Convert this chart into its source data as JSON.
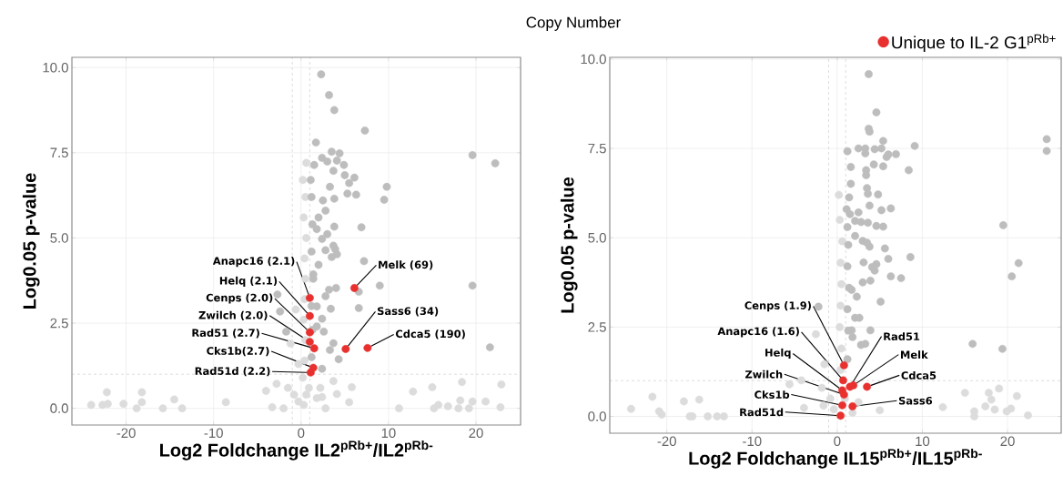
{
  "chart_data": [
    {
      "type": "scatter",
      "xlabel": "Log2 Foldchange IL2$^{pRb+}$/IL2$^{pRb-}$",
      "ylabel": "Log0.05 p-value",
      "xlim": [
        -26.2,
        25.1
      ],
      "ylim": [
        -0.49,
        10.3
      ],
      "xticks": [
        -20,
        -10,
        0,
        10,
        20
      ],
      "yticks": [
        {
          "value": 0,
          "label": "0.0"
        },
        {
          "value": 2.5,
          "label": "2.5"
        },
        {
          "value": 5,
          "label": "5.0"
        },
        {
          "value": 7.5,
          "label": "7.5"
        },
        {
          "value": 10,
          "label": "10.0"
        }
      ],
      "grid": true,
      "legend": false,
      "ref_lines": [
        {
          "axis": "x",
          "value": -1,
          "color": "#aaaaaa",
          "line_style": "dashed"
        },
        {
          "axis": "x",
          "value": 1,
          "color": "#aaaaaa",
          "line_style": "dashed"
        },
        {
          "axis": "y",
          "value": 1,
          "color": "#aaaaaa",
          "line_style": "dashed"
        }
      ],
      "series": [
        {
          "color": "#dcdcdc",
          "x": [
            -24,
            -22.7,
            -22.2,
            -22.1,
            -20.3,
            -18.8,
            -18.2,
            -18.2,
            -15.8,
            -14.5,
            -13.6,
            -8.6,
            -4.0,
            -3.3,
            -2.8,
            3.7,
            4.1,
            5.8,
            5.5,
            11.2,
            12.8,
            15.0,
            15.2,
            15.7,
            16.8,
            18.4,
            18.2,
            18.0,
            19.2,
            19.6,
            21.1,
            22.9,
            22.8,
            2.4,
            2.8,
            -2.0,
            0.3,
            0.6,
            -0.3,
            0.9,
            0.2,
            -0.8,
            1.8,
            2.2,
            -1.5,
            0.4,
            0.5,
            0.3,
            0.4,
            0.5,
            0.4,
            0.6,
            0.3,
            0.5,
            0.2,
            0.6,
            -0.3,
            -0.6,
            -1.2
          ],
          "values": [
            0.1,
            0.1,
            0.47,
            0.13,
            0.13,
            0,
            0.47,
            0.18,
            0,
            0.26,
            0,
            0.18,
            0.51,
            0.03,
            0.72,
            0.8,
            0.42,
            0.62,
            0.18,
            0,
            0.49,
            0.62,
            0,
            0.1,
            0.06,
            0.77,
            0.23,
            0,
            0,
            0.2,
            0.2,
            0.7,
            0.03,
            0.33,
            0,
            0,
            0.1,
            0.4,
            0.2,
            0.6,
            0.9,
            0.4,
            0.3,
            0.6,
            0.6,
            1.4,
            2.0,
            2.6,
            3.2,
            3.8,
            4.4,
            5.0,
            5.6,
            6.2,
            6.7,
            7.2,
            1.3,
            2.9,
            1.9
          ]
        },
        {
          "color": "#bdbdbd",
          "x": [
            2.3,
            3.2,
            3.8,
            7.3,
            1.7,
            19.6,
            22.2,
            3.5,
            4.4,
            2.4,
            3.0,
            4.1,
            4.9,
            1.5,
            3.7,
            5.0,
            6.1,
            5.5,
            3.3,
            9.8,
            5.3,
            6.3,
            9.5,
            3.8,
            2.5,
            2.8,
            2.0,
            6.9,
            3.8,
            1.8,
            3.0,
            2.4,
            3.7,
            2.8,
            3.9,
            4.1,
            7.2,
            3.5,
            2.0,
            1.4,
            9.0,
            19.6,
            4.0,
            3.2,
            6.6,
            2.8,
            -2.7,
            1.8,
            6.6,
            3.4,
            2.4,
            1.8,
            2.6,
            3.7,
            3.3,
            4.3,
            21.6,
            -2.4,
            -1.7,
            2.4,
            1.2,
            1.3,
            1.2,
            1.4,
            1.2,
            1.3,
            1.2,
            1.1
          ],
          "values": [
            9.8,
            9.19,
            8.75,
            8.15,
            7.8,
            7.43,
            7.19,
            7.53,
            7.48,
            7.35,
            7.24,
            7.27,
            7.14,
            7.14,
            6.97,
            6.84,
            6.77,
            6.61,
            6.5,
            6.5,
            6.3,
            6.27,
            6.12,
            6.15,
            6.1,
            5.8,
            5.6,
            5.31,
            5.33,
            5.26,
            5.11,
            4.97,
            4.77,
            4.64,
            4.67,
            4.52,
            4.32,
            4.44,
            4.21,
            3.93,
            3.6,
            3.6,
            3.53,
            3.48,
            3.42,
            3.29,
            3.34,
            2.99,
            2.94,
            2.92,
            2.63,
            2.4,
            2.25,
            1.91,
            1.71,
            1.44,
            1.79,
            2.84,
            2.25,
            1.16,
            1.5,
            2.3,
            3.0,
            3.8,
            4.6,
            5.4,
            6.2,
            6.7
          ]
        },
        {
          "color": "#e8312f",
          "x": [
            1.0,
            1.0,
            1.0,
            1.0,
            1.5,
            1.4,
            1.1,
            6.1,
            5.1,
            7.6
          ],
          "values": [
            3.24,
            2.71,
            2.23,
            1.95,
            1.76,
            1.19,
            1.05,
            3.53,
            1.74,
            1.77
          ]
        }
      ],
      "annotations": [
        {
          "text": "Anapc16 (2.1)",
          "x": 1.0,
          "y": 3.24
        },
        {
          "text": "Helq (2.1)",
          "x": 1.0,
          "y": 2.71
        },
        {
          "text": "Cenps (2.0)",
          "x": 1.0,
          "y": 2.23
        },
        {
          "text": "Zwilch (2.0)",
          "x": 1.0,
          "y": 1.95
        },
        {
          "text": "Rad51 (2.7)",
          "x": 1.5,
          "y": 1.76
        },
        {
          "text": "Cks1b(2.7)",
          "x": 1.4,
          "y": 1.19
        },
        {
          "text": "Rad51d (2.2)",
          "x": 1.1,
          "y": 1.05
        },
        {
          "text": "Melk (69)",
          "x": 6.1,
          "y": 3.53
        },
        {
          "text": "Sass6 (34)",
          "x": 5.1,
          "y": 1.74
        },
        {
          "text": "Cdca5 (190)",
          "x": 7.6,
          "y": 1.77
        }
      ]
    },
    {
      "type": "scatter",
      "title": "Copy Number",
      "xlabel": "Log2 Foldchange IL15$^{pRb+}$/IL15$^{pRb-}$",
      "ylabel": "Log0.05 p-value",
      "xlim": [
        -26.7,
        26.3
      ],
      "ylim": [
        -0.47,
        10.05
      ],
      "xticks": [
        -20,
        -10,
        0,
        10,
        20
      ],
      "yticks": [
        {
          "value": 0,
          "label": "0.0"
        },
        {
          "value": 2.5,
          "label": "2.5"
        },
        {
          "value": 5,
          "label": "5.0"
        },
        {
          "value": 7.5,
          "label": "7.5"
        },
        {
          "value": 10,
          "label": "10.0"
        }
      ],
      "grid": true,
      "legend": "top right",
      "ref_lines": [
        {
          "axis": "x",
          "value": -1,
          "color": "#aaaaaa",
          "line_style": "dashed"
        },
        {
          "axis": "x",
          "value": 1,
          "color": "#aaaaaa",
          "line_style": "dashed"
        },
        {
          "axis": "y",
          "value": 1,
          "color": "#aaaaaa",
          "line_style": "dashed"
        }
      ],
      "series": [
        {
          "color": "#dcdcdc",
          "x": [
            -24.2,
            -21.7,
            -20.9,
            -20.6,
            -18.0,
            -17.3,
            -17.0,
            -16.2,
            -15.2,
            -14.1,
            -13.3,
            -5.6,
            -4.2,
            -3.9,
            5.0,
            12.4,
            15.0,
            16.1,
            17.4,
            17.8,
            18.1,
            19.0,
            18.5,
            19.9,
            20.4,
            21.1,
            22.4,
            16.1,
            -1.5,
            -0.4,
            0.9,
            -0.8,
            1.8,
            2.5,
            -1.6,
            0.4,
            0.5,
            0.3,
            0.4,
            0.5,
            0.4,
            0.6,
            0.3,
            0.2,
            -1.8,
            -2.5
          ],
          "values": [
            0.21,
            0.55,
            0.14,
            0.05,
            0.42,
            0,
            0,
            0.47,
            0,
            0,
            0,
            0.9,
            1.01,
            0.24,
            0.17,
            0.26,
            0.66,
            0.14,
            0.28,
            0.66,
            0.47,
            0.78,
            0.19,
            0.14,
            0.22,
            0.57,
            0.03,
            0,
            1.46,
            0.2,
            0.5,
            0.5,
            0.1,
            0.4,
            0.3,
            1.3,
            1.9,
            2.5,
            3.1,
            3.7,
            4.3,
            4.9,
            5.5,
            6.2,
            0.8,
            2.3
          ]
        },
        {
          "color": "#bdbdbd",
          "x": [
            3.7,
            4.6,
            3.7,
            3.8,
            24.6,
            24.6,
            5.4,
            9.1,
            2.5,
            3.3,
            4.4,
            5.2,
            1.2,
            3.3,
            6.0,
            6.9,
            5.8,
            1.6,
            4.3,
            5.4,
            3.4,
            8.4,
            3.4,
            1.6,
            3.5,
            3.6,
            4.8,
            1.4,
            3.8,
            5.2,
            6.3,
            2.5,
            1.5,
            2.1,
            2.8,
            3.6,
            4.6,
            5.4,
            19.5,
            2.1,
            3.0,
            3.5,
            3.8,
            5.6,
            8.6,
            6.0,
            21.3,
            3.1,
            4.1,
            4.6,
            4.4,
            20.5,
            6.3,
            7.5,
            3.0,
            3.9,
            1.7,
            2.3,
            5.1,
            -2.2,
            2.1,
            2.6,
            3.9,
            1.7,
            2.8,
            3.3,
            15.9,
            19.4,
            1.8,
            1.2,
            1.3,
            1.2,
            1.4,
            1.2,
            1.3,
            1.2,
            1.1
          ],
          "values": [
            9.58,
            8.51,
            8.05,
            7.97,
            7.76,
            7.43,
            7.71,
            7.57,
            7.5,
            7.5,
            7.48,
            7.5,
            7.42,
            7.36,
            7.33,
            7.34,
            7.26,
            6.98,
            7.05,
            7.0,
            6.89,
            6.89,
            6.75,
            6.51,
            6.39,
            6.23,
            6.21,
            6.13,
            5.9,
            5.77,
            5.82,
            5.71,
            5.66,
            5.47,
            5.44,
            5.42,
            5.33,
            5.31,
            5.35,
            5.05,
            4.91,
            4.86,
            4.75,
            4.7,
            4.46,
            4.41,
            4.29,
            4.31,
            4.18,
            4.26,
            4.08,
            3.92,
            3.92,
            3.87,
            3.75,
            3.8,
            3.54,
            3.35,
            3.21,
            3.07,
            2.76,
            2.76,
            2.41,
            2.41,
            2.0,
            2.03,
            2.03,
            1.89,
            2.22,
            1.6,
            2.4,
            3.0,
            3.6,
            4.2,
            4.8,
            5.3,
            5.8
          ]
        },
        {
          "name": "Unique to IL-2 G1$^{pRb+}$",
          "color": "#e8312f",
          "x": [
            0.8,
            0.7,
            0.6,
            0.8,
            1.5,
            1.9,
            3.5,
            1.8,
            0.6,
            0.4
          ],
          "values": [
            1.43,
            1.01,
            0.73,
            0.61,
            0.83,
            0.87,
            0.83,
            0.28,
            0.31,
            0.02
          ]
        }
      ],
      "annotations": [
        {
          "text": "Cenps (1.9)",
          "x": 0.8,
          "y": 1.43
        },
        {
          "text": "Anapc16 (1.6)",
          "x": 0.7,
          "y": 1.01
        },
        {
          "text": "Helq",
          "x": 0.6,
          "y": 0.73
        },
        {
          "text": "Zwilch",
          "x": 0.8,
          "y": 0.61
        },
        {
          "text": "Rad51",
          "x": 1.5,
          "y": 0.83
        },
        {
          "text": "Melk",
          "x": 1.9,
          "y": 0.87
        },
        {
          "text": "Cdca5",
          "x": 3.5,
          "y": 0.83
        },
        {
          "text": "Sass6",
          "x": 1.8,
          "y": 0.28
        },
        {
          "text": "Cks1b",
          "x": 0.6,
          "y": 0.31
        },
        {
          "text": "Rad51d",
          "x": 0.4,
          "y": 0.02
        }
      ]
    }
  ]
}
